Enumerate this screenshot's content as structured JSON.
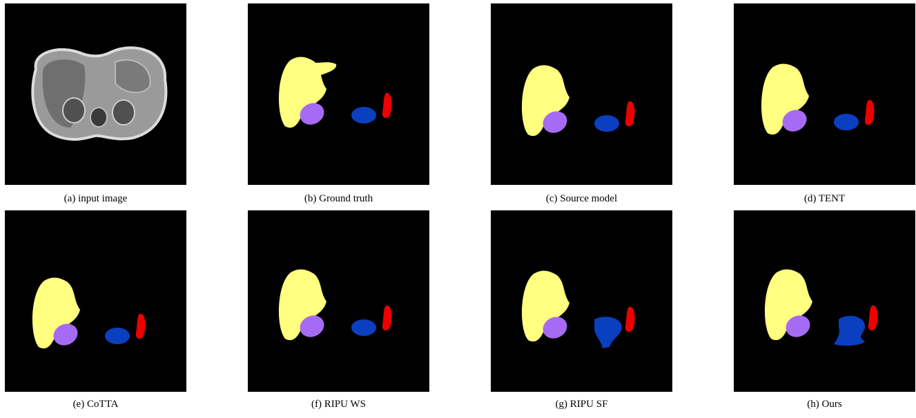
{
  "panels": [
    {
      "caption": "(a) input image"
    },
    {
      "caption": "(b) Ground truth"
    },
    {
      "caption": "(c) Source model"
    },
    {
      "caption": "(d) TENT"
    },
    {
      "caption": "(e) CoTTA"
    },
    {
      "caption": "(f) RIPU WS"
    },
    {
      "caption": "(g) RIPU SF"
    },
    {
      "caption": "(h) Ours"
    }
  ]
}
